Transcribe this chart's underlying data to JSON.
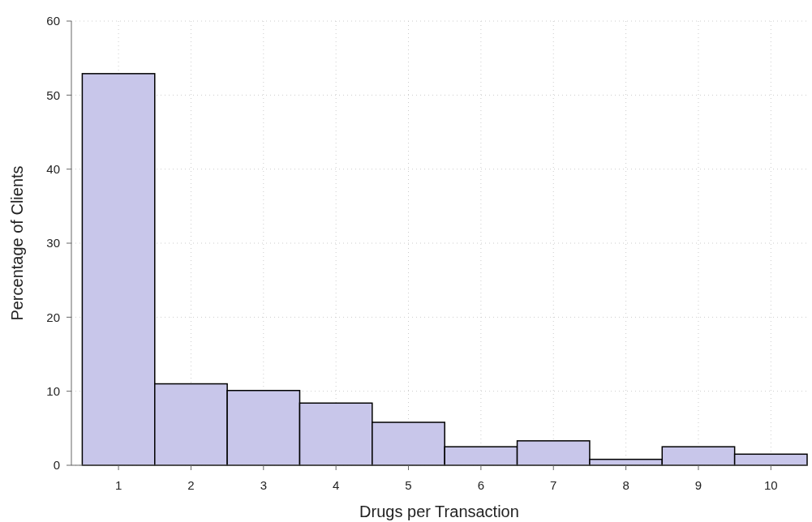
{
  "chart_data": {
    "type": "histogram",
    "xlabel": "Drugs per Transaction",
    "ylabel": "Percentage of Clients",
    "bins": [
      0.5,
      1.5,
      2.5,
      3.5,
      4.5,
      5.5,
      6.5,
      7.5,
      8.5,
      9.5,
      10.5
    ],
    "values": [
      52.9,
      11,
      10.1,
      8.4,
      5.8,
      2.5,
      3.3,
      0.8,
      2.5,
      1.5
    ],
    "color": "#c8c6ea",
    "xlim": [
      0.35,
      10.5
    ],
    "xticks": [
      1,
      2,
      3,
      4,
      5,
      6,
      7,
      8,
      9,
      10
    ],
    "ylim": [
      0,
      60
    ],
    "yticks": [
      0,
      10,
      20,
      30,
      40,
      50,
      60
    ],
    "grid": true
  }
}
